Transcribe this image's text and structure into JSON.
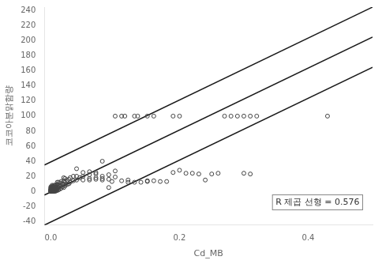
{
  "chart_data": {
    "type": "scatter",
    "xlabel": "Cd_MB",
    "ylabel": "코코아분맑함량",
    "annotation": "R 제곱 선형 = 0.576",
    "xlim": [
      -0.01,
      0.5
    ],
    "ylim": [
      -45,
      245
    ],
    "xticks": [
      {
        "value": 0.0,
        "label": "0.0"
      },
      {
        "value": 0.2,
        "label": "0.2"
      },
      {
        "value": 0.4,
        "label": "0.4"
      }
    ],
    "yticks": [
      -40,
      -20,
      0,
      20,
      40,
      60,
      80,
      100,
      120,
      140,
      160,
      180,
      200,
      220,
      240
    ],
    "grid": false,
    "series": [
      {
        "type": "line",
        "color": "#1a1a1a",
        "x": [
          -0.01,
          0.5
        ],
        "y": [
          35.0,
          245.0
        ]
      },
      {
        "type": "line",
        "color": "#1a1a1a",
        "x": [
          -0.01,
          0.5
        ],
        "y": [
          -5.0,
          205.0
        ]
      },
      {
        "type": "line",
        "color": "#1a1a1a",
        "x": [
          -0.01,
          0.5
        ],
        "y": [
          -45.0,
          165.0
        ]
      },
      {
        "type": "scatter",
        "color": "#444444",
        "marker": "circle",
        "x": [
          0.0,
          0.0,
          0.0,
          0.0,
          0.0,
          0.0,
          0.0,
          0.0,
          0.0,
          0.0,
          0.0,
          0.0,
          0.0,
          0.0,
          0.0,
          0.0,
          0.0,
          0.0,
          0.0,
          0.0,
          0.001,
          0.001,
          0.001,
          0.001,
          0.001,
          0.002,
          0.002,
          0.002,
          0.002,
          0.002,
          0.002,
          0.002,
          0.003,
          0.003,
          0.003,
          0.003,
          0.003,
          0.003,
          0.004,
          0.004,
          0.004,
          0.004,
          0.004,
          0.005,
          0.005,
          0.005,
          0.005,
          0.005,
          0.005,
          0.006,
          0.006,
          0.006,
          0.006,
          0.007,
          0.007,
          0.007,
          0.007,
          0.007,
          0.008,
          0.008,
          0.008,
          0.008,
          0.009,
          0.009,
          0.009,
          0.01,
          0.01,
          0.01,
          0.01,
          0.01,
          0.012,
          0.012,
          0.012,
          0.012,
          0.014,
          0.014,
          0.014,
          0.016,
          0.016,
          0.016,
          0.018,
          0.018,
          0.02,
          0.02,
          0.02,
          0.02,
          0.022,
          0.022,
          0.022,
          0.025,
          0.025,
          0.028,
          0.028,
          0.03,
          0.03,
          0.035,
          0.035,
          0.04,
          0.04,
          0.045,
          0.05,
          0.05,
          0.06,
          0.06,
          0.07,
          0.07,
          0.08,
          0.09
        ],
        "y": [
          0,
          0,
          0,
          0,
          0,
          0,
          0,
          0,
          1,
          1,
          1,
          1,
          2,
          2,
          2,
          3,
          3,
          4,
          5,
          6,
          0,
          1,
          2,
          3,
          5,
          0,
          1,
          2,
          3,
          4,
          6,
          8,
          0,
          1,
          2,
          3,
          5,
          7,
          0,
          1,
          2,
          4,
          6,
          0,
          1,
          2,
          3,
          5,
          8,
          1,
          2,
          4,
          7,
          0,
          1,
          3,
          5,
          8,
          1,
          2,
          4,
          6,
          2,
          5,
          9,
          1,
          3,
          6,
          9,
          12,
          2,
          5,
          8,
          12,
          3,
          7,
          11,
          4,
          8,
          13,
          6,
          10,
          5,
          9,
          14,
          18,
          7,
          12,
          17,
          9,
          14,
          10,
          16,
          12,
          18,
          14,
          20,
          15,
          20,
          18,
          15,
          20,
          17,
          22,
          18,
          23,
          20,
          22
        ]
      },
      {
        "type": "scatter",
        "color": "#444444",
        "marker": "circle",
        "x": [
          0.04,
          0.05,
          0.06,
          0.07,
          0.08,
          0.09,
          0.095,
          0.1,
          0.1,
          0.11,
          0.12,
          0.12,
          0.13,
          0.14,
          0.15,
          0.06,
          0.07,
          0.08,
          0.09
        ],
        "y": [
          30,
          25,
          26,
          25,
          17,
          16,
          13,
          27,
          19,
          14,
          15,
          12,
          12,
          12,
          13,
          15,
          16,
          15,
          5
        ]
      },
      {
        "type": "scatter",
        "color": "#444444",
        "marker": "circle",
        "x": [
          0.15,
          0.16,
          0.17,
          0.18,
          0.19,
          0.2,
          0.21,
          0.22,
          0.23,
          0.24,
          0.25,
          0.26
        ],
        "y": [
          14,
          14,
          13,
          13,
          25,
          28,
          24,
          24,
          23,
          15,
          23,
          24
        ]
      },
      {
        "type": "scatter",
        "color": "#444444",
        "marker": "circle",
        "x": [
          0.3,
          0.31
        ],
        "y": [
          24,
          23
        ]
      },
      {
        "type": "scatter",
        "color": "#444444",
        "marker": "circle",
        "x": [
          0.08
        ],
        "y": [
          40
        ]
      },
      {
        "type": "scatter",
        "color": "#444444",
        "marker": "circle",
        "x": [
          0.1,
          0.11,
          0.115,
          0.13,
          0.135,
          0.15,
          0.16,
          0.19,
          0.2,
          0.27,
          0.28,
          0.29,
          0.3,
          0.31,
          0.32,
          0.43
        ],
        "y": [
          100,
          100,
          100,
          100,
          100,
          100,
          100,
          100,
          100,
          100,
          100,
          100,
          100,
          100,
          100,
          100
        ]
      }
    ]
  }
}
